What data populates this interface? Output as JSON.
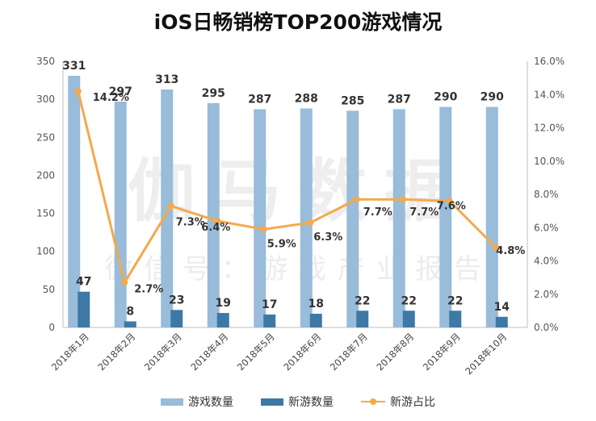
{
  "chart_data": {
    "type": "bar+line",
    "title": "iOS日畅销榜TOP200游戏情况",
    "categories": [
      "2018年1月",
      "2018年2月",
      "2018年3月",
      "2018年4月",
      "2018年5月",
      "2018年6月",
      "2018年7月",
      "2018年8月",
      "2018年9月",
      "2018年10月"
    ],
    "series": [
      {
        "name": "游戏数量",
        "type": "bar",
        "axis": "left",
        "color": "#98bcd9",
        "values": [
          331,
          297,
          313,
          295,
          287,
          288,
          285,
          287,
          290,
          290
        ]
      },
      {
        "name": "新游数量",
        "type": "bar",
        "axis": "left",
        "color": "#3e79a6",
        "values": [
          47,
          8,
          23,
          19,
          17,
          18,
          22,
          22,
          22,
          14
        ]
      },
      {
        "name": "新游占比",
        "type": "line",
        "axis": "right",
        "color": "#f4a94b",
        "values": [
          14.2,
          2.7,
          7.3,
          6.4,
          5.9,
          6.3,
          7.7,
          7.7,
          7.6,
          4.8
        ],
        "labels": [
          "14.2%",
          "2.7%",
          "7.3%",
          "6.4%",
          "5.9%",
          "6.3%",
          "7.7%",
          "7.7%",
          "7.6%",
          "4.8%"
        ]
      }
    ],
    "y_left": {
      "min": 0,
      "max": 350,
      "ticks": [
        "0",
        "50",
        "100",
        "150",
        "200",
        "250",
        "300",
        "350"
      ]
    },
    "y_right": {
      "min": 0,
      "max": 16,
      "ticks": [
        "0.0%",
        "2.0%",
        "4.0%",
        "6.0%",
        "8.0%",
        "10.0%",
        "12.0%",
        "14.0%",
        "16.0%"
      ]
    },
    "legend_position": "bottom"
  },
  "watermark": {
    "main": "伽马数据",
    "sub": "微信号：游戏产业报告"
  }
}
